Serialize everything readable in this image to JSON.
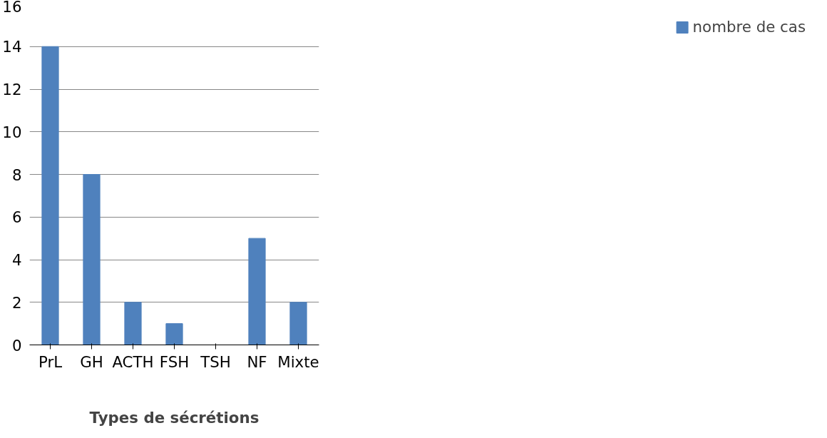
{
  "chart_data": {
    "type": "bar",
    "xlabel": "Types de sécrétions",
    "categories": [
      "PrL",
      "GH",
      "ACTH",
      "FSH",
      "TSH",
      "NF",
      "Mixte"
    ],
    "series": [
      {
        "name": "nombre de cas",
        "color": "#4f81bd",
        "values": [
          14,
          8,
          2,
          1,
          0,
          5,
          2
        ]
      }
    ],
    "ylim": [
      0,
      16
    ],
    "yticks": [
      0,
      2,
      4,
      6,
      8,
      10,
      12,
      14,
      16
    ],
    "grid": "y",
    "legend": "right"
  }
}
